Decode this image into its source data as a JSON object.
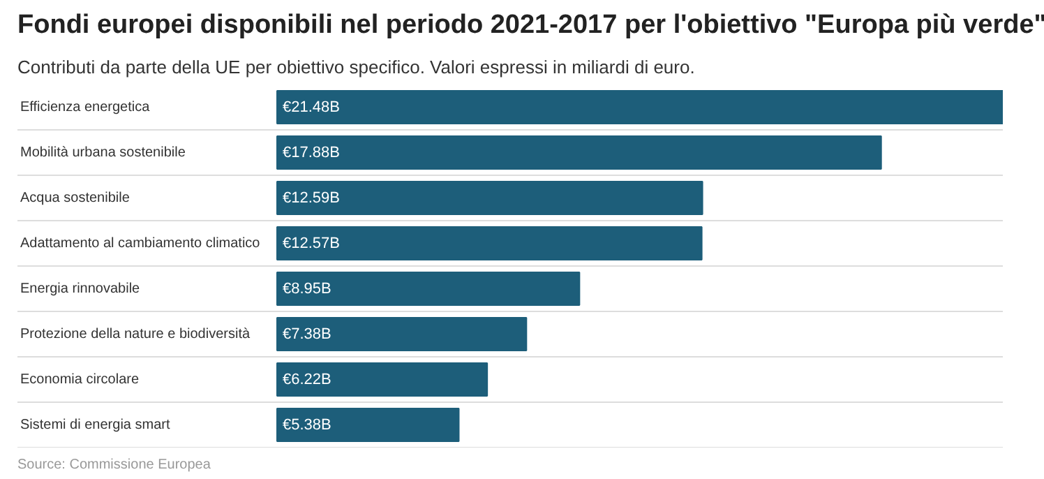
{
  "chart_data": {
    "type": "bar",
    "orientation": "horizontal",
    "title": "Fondi europei disponibili nel periodo 2021-2017 per l'obiettivo \"Europa più verde\"",
    "subtitle": "Contributi da parte della UE per obiettivo specifico. Valori espressi in miliardi di euro.",
    "categories": [
      "Efficienza energetica",
      "Mobilità urbana sostenibile",
      "Acqua sostenibile",
      "Adattamento al cambiamento climatico",
      "Energia rinnovabile",
      "Protezione della nature e biodiversità",
      "Economia circolare",
      "Sistemi di energia smart"
    ],
    "values": [
      21.48,
      17.88,
      12.59,
      12.57,
      8.95,
      7.38,
      6.22,
      5.38
    ],
    "value_labels": [
      "€21.48B",
      "€17.88B",
      "€12.59B",
      "€12.57B",
      "€8.95B",
      "€7.38B",
      "€6.22B",
      "€5.38B"
    ],
    "color": "#1d5e7a",
    "annotations": [
      "Source: Commissione Europea"
    ]
  }
}
